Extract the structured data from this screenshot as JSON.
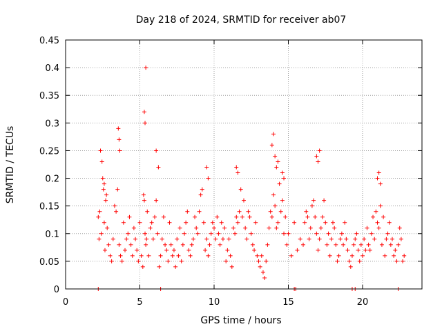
{
  "chart_data": {
    "type": "scatter",
    "title": "Day 218 of 2024, SRMTID for receiver ab07",
    "xlabel": "GPS time / hours",
    "ylabel": "SRMTID / TECUs",
    "xlim": [
      0,
      24
    ],
    "ylim": [
      0,
      0.45
    ],
    "grid": true,
    "x_ticks": [
      0,
      5,
      10,
      15,
      20
    ],
    "x_tick_labels": [
      "0",
      "5",
      "10",
      "15",
      "20"
    ],
    "y_ticks": [
      0,
      0.05,
      0.1,
      0.15,
      0.2,
      0.25,
      0.3,
      0.35,
      0.4,
      0.45
    ],
    "y_tick_labels": [
      "0",
      "0.05",
      "0.1",
      "0.15",
      "0.2",
      "0.25",
      "0.3",
      "0.35",
      "0.4",
      "0.45"
    ],
    "marker": "+",
    "marker_color": "#ff0000",
    "series": [
      {
        "name": "SRMTID",
        "x": [
          2.2,
          2.25,
          2.3,
          2.4,
          2.5,
          2.55,
          2.6,
          2.65,
          2.7,
          2.8,
          2.9,
          3.0,
          3.1,
          3.2,
          3.3,
          3.4,
          3.5,
          3.6,
          3.7,
          3.8,
          3.9,
          4.0,
          4.1,
          4.2,
          4.3,
          4.4,
          4.5,
          4.6,
          4.7,
          4.8,
          4.9,
          5.0,
          5.1,
          5.2,
          5.25,
          5.3,
          5.35,
          5.4,
          5.45,
          5.5,
          5.6,
          5.7,
          5.8,
          5.9,
          6.0,
          6.1,
          6.2,
          6.3,
          6.4,
          6.5,
          6.6,
          6.7,
          6.8,
          6.9,
          7.0,
          7.1,
          7.2,
          7.3,
          7.4,
          7.5,
          7.6,
          7.7,
          7.8,
          7.9,
          8.0,
          8.1,
          8.2,
          8.3,
          8.4,
          8.5,
          8.6,
          8.7,
          8.8,
          8.9,
          9.0,
          9.1,
          9.2,
          9.3,
          9.4,
          9.5,
          9.6,
          9.7,
          9.8,
          9.9,
          10.0,
          10.1,
          10.2,
          10.3,
          10.4,
          10.5,
          10.6,
          10.7,
          10.8,
          10.9,
          11.0,
          11.1,
          11.2,
          11.3,
          11.4,
          11.5,
          11.6,
          11.7,
          11.8,
          11.9,
          12.0,
          12.1,
          12.2,
          12.3,
          12.4,
          12.5,
          12.6,
          12.7,
          12.8,
          12.9,
          13.0,
          13.1,
          13.2,
          13.3,
          13.4,
          13.5,
          13.6,
          13.7,
          13.8,
          13.9,
          14.0,
          14.1,
          14.2,
          14.3,
          14.4,
          14.5,
          14.6,
          14.7,
          14.8,
          14.9,
          15.0,
          15.2,
          15.4,
          15.6,
          15.8,
          16.0,
          16.1,
          16.2,
          16.3,
          16.4,
          16.5,
          16.6,
          16.7,
          16.8,
          16.9,
          17.0,
          17.1,
          17.2,
          17.3,
          17.4,
          17.5,
          17.6,
          17.7,
          17.8,
          17.9,
          18.0,
          18.1,
          18.2,
          18.3,
          18.4,
          18.5,
          18.6,
          18.7,
          18.8,
          18.9,
          19.0,
          19.1,
          19.2,
          19.3,
          19.4,
          19.5,
          19.6,
          19.7,
          19.8,
          19.9,
          20.0,
          20.1,
          20.2,
          20.3,
          20.4,
          20.5,
          20.6,
          20.7,
          20.8,
          20.9,
          21.0,
          21.1,
          21.2,
          21.3,
          21.4,
          21.5,
          21.6,
          21.7,
          21.8,
          21.9,
          22.0,
          22.1,
          22.2,
          22.3,
          22.4,
          22.5,
          22.6,
          22.7,
          22.8,
          2.35,
          2.45,
          2.6,
          2.75,
          3.55,
          3.6,
          3.65,
          5.3,
          5.35,
          5.4,
          6.1,
          6.25,
          9.5,
          9.6,
          11.5,
          11.6,
          13.9,
          14.0,
          14.1,
          14.2,
          14.3,
          14.6,
          14.7,
          16.9,
          17.0,
          17.1,
          21.0,
          21.1,
          21.2,
          2.2,
          6.4,
          15.4,
          15.5,
          19.3,
          19.5,
          22.4
        ],
        "y": [
          0.13,
          0.09,
          0.14,
          0.1,
          0.2,
          0.18,
          0.12,
          0.07,
          0.16,
          0.11,
          0.08,
          0.06,
          0.05,
          0.09,
          0.15,
          0.14,
          0.18,
          0.08,
          0.06,
          0.05,
          0.12,
          0.07,
          0.09,
          0.1,
          0.13,
          0.08,
          0.06,
          0.11,
          0.09,
          0.07,
          0.05,
          0.12,
          0.06,
          0.04,
          0.17,
          0.16,
          0.1,
          0.08,
          0.09,
          0.14,
          0.06,
          0.11,
          0.12,
          0.09,
          0.13,
          0.16,
          0.1,
          0.04,
          0.06,
          0.09,
          0.13,
          0.08,
          0.07,
          0.05,
          0.12,
          0.08,
          0.06,
          0.07,
          0.04,
          0.09,
          0.06,
          0.11,
          0.05,
          0.08,
          0.1,
          0.12,
          0.14,
          0.07,
          0.06,
          0.08,
          0.09,
          0.13,
          0.11,
          0.1,
          0.14,
          0.17,
          0.18,
          0.12,
          0.07,
          0.09,
          0.06,
          0.08,
          0.1,
          0.12,
          0.11,
          0.09,
          0.13,
          0.1,
          0.08,
          0.12,
          0.09,
          0.11,
          0.05,
          0.07,
          0.09,
          0.06,
          0.04,
          0.11,
          0.1,
          0.13,
          0.12,
          0.14,
          0.18,
          0.13,
          0.16,
          0.11,
          0.09,
          0.14,
          0.13,
          0.1,
          0.08,
          0.07,
          0.12,
          0.06,
          0.05,
          0.04,
          0.06,
          0.03,
          0.02,
          0.05,
          0.08,
          0.11,
          0.14,
          0.13,
          0.17,
          0.15,
          0.11,
          0.12,
          0.19,
          0.14,
          0.16,
          0.1,
          0.13,
          0.08,
          0.1,
          0.06,
          0.12,
          0.07,
          0.09,
          0.08,
          0.12,
          0.14,
          0.13,
          0.09,
          0.11,
          0.15,
          0.16,
          0.13,
          0.1,
          0.07,
          0.09,
          0.11,
          0.13,
          0.16,
          0.12,
          0.08,
          0.1,
          0.06,
          0.09,
          0.12,
          0.11,
          0.08,
          0.05,
          0.06,
          0.09,
          0.1,
          0.08,
          0.12,
          0.09,
          0.07,
          0.05,
          0.04,
          0.06,
          0.08,
          0.09,
          0.1,
          0.07,
          0.05,
          0.08,
          0.06,
          0.09,
          0.07,
          0.11,
          0.08,
          0.07,
          0.1,
          0.13,
          0.09,
          0.14,
          0.12,
          0.11,
          0.15,
          0.08,
          0.13,
          0.06,
          0.09,
          0.1,
          0.12,
          0.08,
          0.09,
          0.06,
          0.07,
          0.05,
          0.08,
          0.11,
          0.09,
          0.05,
          0.06,
          0.25,
          0.23,
          0.19,
          0.17,
          0.29,
          0.27,
          0.25,
          0.32,
          0.3,
          0.4,
          0.25,
          0.22,
          0.22,
          0.2,
          0.22,
          0.21,
          0.26,
          0.28,
          0.24,
          0.22,
          0.23,
          0.21,
          0.2,
          0.24,
          0.23,
          0.25,
          0.2,
          0.21,
          0.19,
          0.0,
          0.0,
          0.0,
          0.0,
          0.0,
          0.0,
          0.0
        ]
      }
    ]
  }
}
